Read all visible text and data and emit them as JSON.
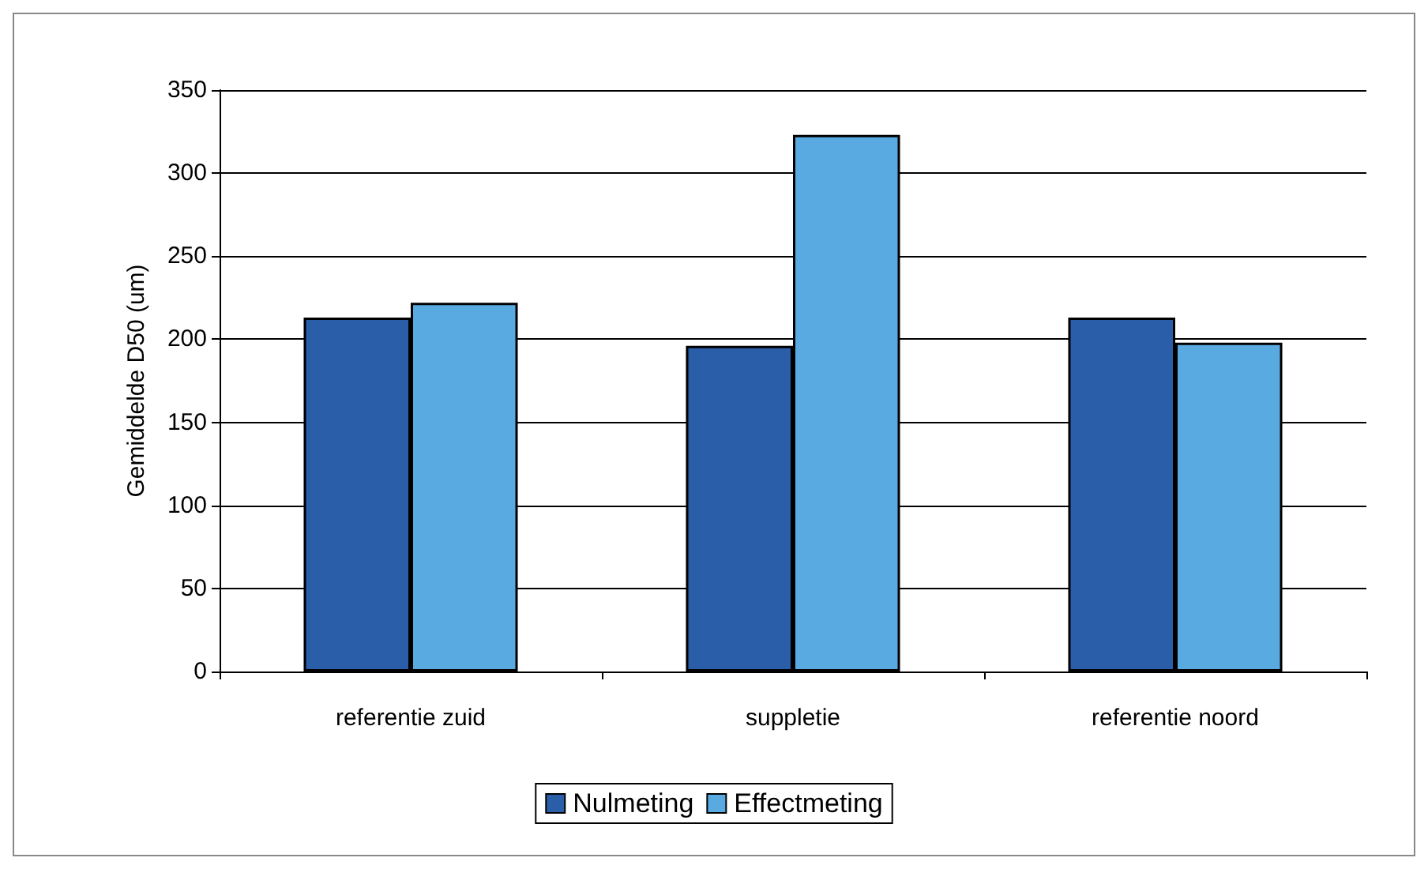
{
  "chart_data": {
    "type": "bar",
    "ylabel": "Gemiddelde D50 (um)",
    "categories": [
      "referentie zuid",
      "suppletie",
      "referentie noord"
    ],
    "series": [
      {
        "name": "Nulmeting",
        "color": "#2a5ea8",
        "values": [
          213,
          196,
          213
        ]
      },
      {
        "name": "Effectmeting",
        "color": "#5aaae2",
        "values": [
          222,
          323,
          198
        ]
      }
    ],
    "ylim": [
      0,
      350
    ],
    "yticks": [
      0,
      50,
      100,
      150,
      200,
      250,
      300,
      350
    ],
    "grid": "y",
    "legend": "bottom"
  }
}
